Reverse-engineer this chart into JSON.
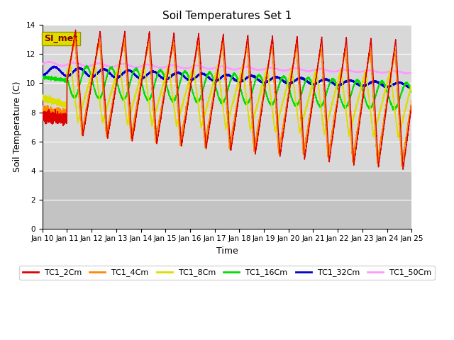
{
  "title": "Soil Temperatures Set 1",
  "xlabel": "Time",
  "ylabel": "Soil Temperature (C)",
  "ylim": [
    0,
    14
  ],
  "yticks": [
    0,
    2,
    4,
    6,
    8,
    10,
    12,
    14
  ],
  "xtick_labels": [
    "Jan 10",
    "Jan 11",
    "Jan 12",
    "Jan 13",
    "Jan 14",
    "Jan 15",
    "Jan 16",
    "Jan 17",
    "Jan 18",
    "Jan 19",
    "Jan 20",
    "Jan 21",
    "Jan 22",
    "Jan 23",
    "Jan 24",
    "Jan 25"
  ],
  "series_colors": {
    "TC1_2Cm": "#dd0000",
    "TC1_4Cm": "#ff8800",
    "TC1_8Cm": "#dddd00",
    "TC1_16Cm": "#00dd00",
    "TC1_32Cm": "#0000cc",
    "TC1_50Cm": "#ff99ff"
  },
  "legend_label": "SI_met",
  "legend_box_facecolor": "#dddd00",
  "legend_text_color": "#880000",
  "plot_bg_color": "#d8d8d8",
  "grid_color": "#ffffff",
  "shade_below": 4.0
}
